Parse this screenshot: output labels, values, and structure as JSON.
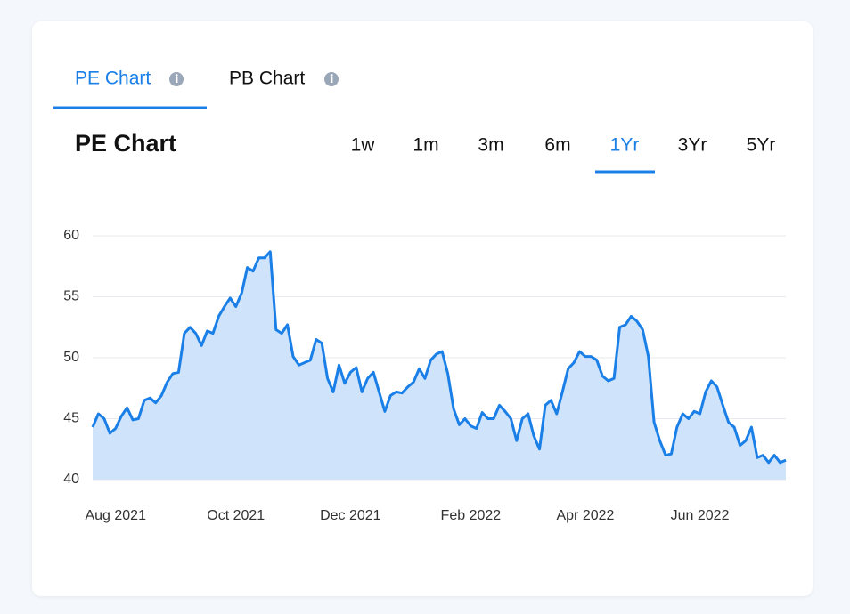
{
  "tabs": [
    {
      "label": "PE Chart",
      "active": true
    },
    {
      "label": "PB Chart",
      "active": false
    }
  ],
  "heading": "PE Chart",
  "ranges": [
    {
      "label": "1w",
      "active": false
    },
    {
      "label": "1m",
      "active": false
    },
    {
      "label": "3m",
      "active": false
    },
    {
      "label": "6m",
      "active": false
    },
    {
      "label": "1Yr",
      "active": true
    },
    {
      "label": "3Yr",
      "active": false
    },
    {
      "label": "5Yr",
      "active": false
    }
  ],
  "chart_data": {
    "type": "area",
    "color": "#1a7fe6",
    "fill_color": "#cfe3fb",
    "grid": true,
    "ylim": [
      40,
      60
    ],
    "yticks": [
      40,
      45,
      50,
      55,
      60
    ],
    "xlim": [
      0,
      121
    ],
    "xticks": [
      {
        "value": 4,
        "label": "Aug 2021"
      },
      {
        "value": 25,
        "label": "Oct 2021"
      },
      {
        "value": 45,
        "label": "Dec 2021"
      },
      {
        "value": 66,
        "label": "Feb 2022"
      },
      {
        "value": 86,
        "label": "Apr 2022"
      },
      {
        "value": 106,
        "label": "Jun 2022"
      }
    ],
    "values": [
      44.3,
      45.4,
      45,
      43.8,
      44.2,
      45.2,
      45.9,
      44.9,
      45,
      46.5,
      46.7,
      46.3,
      46.9,
      48,
      48.7,
      48.8,
      52,
      52.5,
      52,
      51,
      52.2,
      52,
      53.4,
      54.2,
      54.9,
      54.2,
      55.3,
      57.4,
      57.1,
      58.2,
      58.2,
      58.7,
      52.3,
      52,
      52.7,
      50.1,
      49.4,
      49.6,
      49.8,
      51.5,
      51.2,
      48.3,
      47.2,
      49.4,
      47.9,
      48.8,
      49.2,
      47.2,
      48.3,
      48.8,
      47.2,
      45.6,
      46.9,
      47.2,
      47.1,
      47.6,
      48,
      49.1,
      48.3,
      49.8,
      50.3,
      50.5,
      48.7,
      45.8,
      44.5,
      45,
      44.4,
      44.2,
      45.5,
      45,
      45,
      46.1,
      45.6,
      45,
      43.2,
      45,
      45.4,
      43.6,
      42.5,
      46.1,
      46.5,
      45.4,
      47.2,
      49.1,
      49.6,
      50.5,
      50.1,
      50.1,
      49.8,
      48.5,
      48.1,
      48.3,
      52.5,
      52.7,
      53.4,
      53,
      52.3,
      50.1,
      44.7,
      43.2,
      42,
      42.1,
      44.3,
      45.4,
      45,
      45.6,
      45.4,
      47.2,
      48.1,
      47.6,
      46.1,
      44.7,
      44.3,
      42.8,
      43.2,
      44.3,
      41.8,
      42,
      41.4,
      42,
      41.4,
      41.6
    ]
  }
}
